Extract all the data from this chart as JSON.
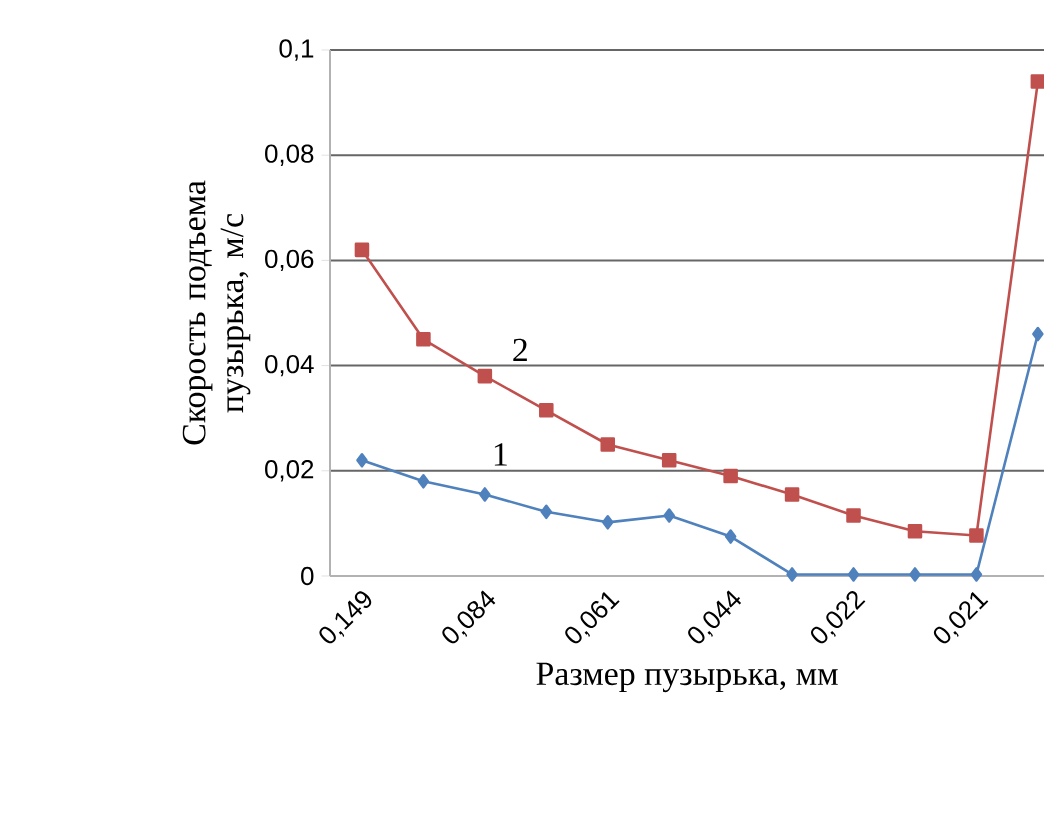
{
  "chart_data": {
    "type": "line",
    "xlabel": "Размер пузырька, мм",
    "ylabel": "Скорость подъема пузырька, м/с",
    "categories": [
      "0,149",
      null,
      "0,084",
      null,
      "0,061",
      null,
      "0,044",
      null,
      "0,022",
      null,
      "0,021",
      null
    ],
    "series": [
      {
        "name": "1",
        "color": "#4f81bd",
        "marker": "diamond",
        "values": [
          0.022,
          0.018,
          0.0155,
          0.0122,
          0.0102,
          0.0115,
          0.0075,
          0.0003,
          0.0003,
          0.0003,
          0.0003,
          0.046
        ]
      },
      {
        "name": "2",
        "color": "#c0504d",
        "marker": "square",
        "values": [
          0.062,
          0.045,
          0.038,
          0.0315,
          0.025,
          0.022,
          0.019,
          0.0155,
          0.0115,
          0.0085,
          0.0077,
          0.094
        ]
      }
    ],
    "ylim": [
      0,
      0.1
    ],
    "yticks": [
      0,
      {
        "value": 0.02,
        "label": "0,02"
      },
      {
        "value": 0.04,
        "label": "0,04"
      },
      {
        "value": 0.06,
        "label": "0,06"
      },
      {
        "value": 0.08,
        "label": "0,08"
      },
      {
        "value": 0.1,
        "label": "0,1"
      }
    ],
    "grid": "y",
    "line_style": "solid"
  }
}
